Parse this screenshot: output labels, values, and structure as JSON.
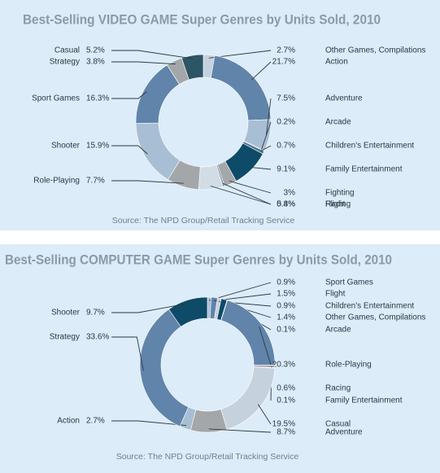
{
  "chart_data": [
    {
      "type": "pie",
      "title": "Best-Selling VIDEO GAME Super Genres by Units Sold, 2010",
      "source": "Source: The NPD Group/Retail Tracking Service",
      "categories": [
        "Other Games, Compilations",
        "Action",
        "Adventure",
        "Arcade",
        "Children's Entertainment",
        "Family Entertainment",
        "Fighting",
        "Flight",
        "Racing",
        "Role-Playing",
        "Shooter",
        "Sport Games",
        "Strategy",
        "Casual"
      ],
      "values": [
        2.7,
        21.7,
        7.5,
        0.2,
        0.7,
        9.1,
        3,
        0.4,
        5.8,
        7.7,
        15.9,
        16.3,
        3.8,
        5.2
      ],
      "value_labels": [
        "2.7%",
        "21.7%",
        "7.5%",
        "0.2%",
        "0.7%",
        "9.1%",
        "3%",
        "0.4%",
        "5.8%",
        "7.7%",
        "15.9%",
        "16.3%",
        "3.8%",
        "5.2%"
      ],
      "colors": [
        "#c5d2de",
        "#6184aa",
        "#a8bed4",
        "#5f7f99",
        "#4e7490",
        "#0d4b68",
        "#a5a8aa",
        "#6a8aa6",
        "#d2dce4",
        "#a4a7a9",
        "#a8bed4",
        "#6184aa",
        "#a4a7a9",
        "#2c5666"
      ]
    },
    {
      "type": "pie",
      "title": "Best-Selling COMPUTER GAME Super Genres by Units Sold, 2010",
      "source": "Source: The NPD Group/Retail Tracking Service",
      "categories": [
        "Sport Games",
        "Flight",
        "Children's Entertainment",
        "Other Games, Compilations",
        "Arcade",
        "Role-Playing",
        "Racing",
        "Family Entertainment",
        "Casual",
        "Adventure",
        "Action",
        "Strategy",
        "Shooter"
      ],
      "values": [
        0.9,
        1.5,
        0.9,
        1.4,
        0.1,
        20.3,
        0.6,
        0.1,
        19.5,
        8.7,
        2.7,
        33.6,
        9.7
      ],
      "value_labels": [
        "0.9%",
        "1.5%",
        "0.9%",
        "1.4%",
        "0.1%",
        "20.3%",
        "0.6%",
        "0.1%",
        "19.5%",
        "8.7%",
        "2.7%",
        "33.6%",
        "9.7%"
      ],
      "colors": [
        "#a8bed4",
        "#6184aa",
        "#c5d2de",
        "#0d4b68",
        "#a5a8aa",
        "#6184aa",
        "#a5a8aa",
        "#2c5666",
        "#c5d2de",
        "#a4a7a9",
        "#a8bed4",
        "#6184aa",
        "#0d4b68"
      ]
    }
  ]
}
